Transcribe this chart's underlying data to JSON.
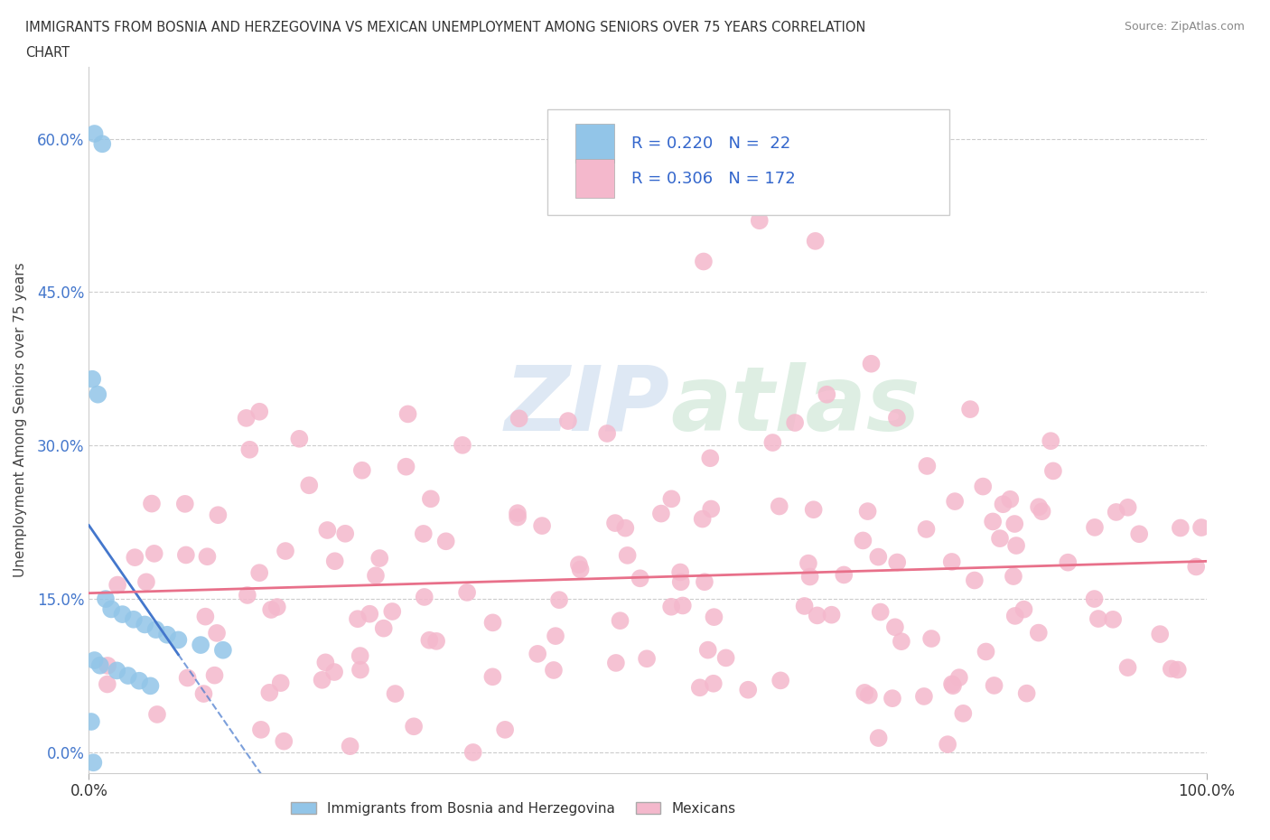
{
  "title_line1": "IMMIGRANTS FROM BOSNIA AND HERZEGOVINA VS MEXICAN UNEMPLOYMENT AMONG SENIORS OVER 75 YEARS CORRELATION",
  "title_line2": "CHART",
  "source": "Source: ZipAtlas.com",
  "ylabel": "Unemployment Among Seniors over 75 years",
  "xlim": [
    0,
    100
  ],
  "ylim": [
    -2,
    67
  ],
  "yticks": [
    0,
    15,
    30,
    45,
    60
  ],
  "xticks": [
    0,
    100
  ],
  "grid_color": "#cccccc",
  "background_color": "#ffffff",
  "bosnia_color": "#92c5e8",
  "mexican_color": "#f4b8cc",
  "bosnia_line_color": "#4477cc",
  "mexican_line_color": "#e8708a",
  "R_bosnia": 0.22,
  "N_bosnia": 22,
  "R_mexican": 0.306,
  "N_mexican": 172,
  "watermark_zip": "ZIP",
  "watermark_atlas": "atlas",
  "bosnia_x": [
    0.5,
    1.2,
    0.3,
    0.8,
    1.5,
    2.0,
    3.0,
    4.0,
    5.0,
    6.0,
    7.0,
    8.0,
    10.0,
    12.0,
    0.5,
    1.0,
    2.5,
    3.5,
    4.5,
    5.5,
    0.2,
    0.4
  ],
  "bosnia_y": [
    60.5,
    59.5,
    36.5,
    35.0,
    15.0,
    14.0,
    13.5,
    13.0,
    12.5,
    12.0,
    11.5,
    11.0,
    10.5,
    10.0,
    9.0,
    8.5,
    8.0,
    7.5,
    7.0,
    6.5,
    3.0,
    -1.0
  ],
  "legend_bosnia_label": "Immigrants from Bosnia and Herzegovina",
  "legend_mexican_label": "Mexicans"
}
